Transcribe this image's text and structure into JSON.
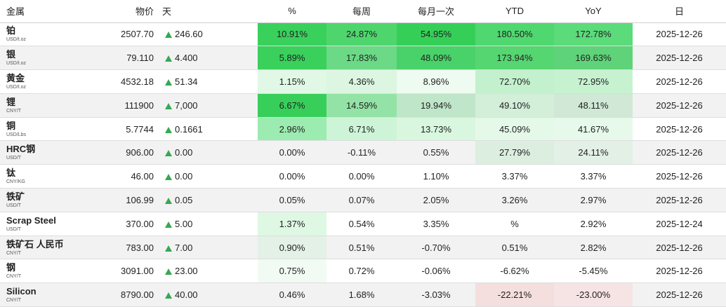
{
  "headers": {
    "name": "金属",
    "price": "物价",
    "day": "天",
    "pct": "%",
    "weekly": "每周",
    "monthly": "每月一次",
    "ytd": "YTD",
    "yoy": "YoY",
    "date": "日"
  },
  "rows": [
    {
      "name": "铂",
      "unit": "USD/t.oz",
      "price": "2507.70",
      "day": "246.60",
      "pct": "10.91%",
      "weekly": "24.87%",
      "monthly": "54.95%",
      "ytd": "180.50%",
      "yoy": "172.78%",
      "date": "2025-12-26",
      "colors": {
        "pct": "#39d05c",
        "weekly": "#4ed66d",
        "monthly": "#35cf58",
        "ytd": "#4fd86f",
        "yoy": "#5bdb79"
      }
    },
    {
      "name": "银",
      "unit": "USD/t.oz",
      "price": "79.110",
      "day": "4.400",
      "pct": "5.89%",
      "weekly": "17.83%",
      "monthly": "48.09%",
      "ytd": "173.94%",
      "yoy": "169.63%",
      "date": "2025-12-26",
      "colors": {
        "pct": "#39d05c",
        "weekly": "#6bd985",
        "monthly": "#49d269",
        "ytd": "#55d671",
        "yoy": "#5fd379"
      }
    },
    {
      "name": "黄金",
      "unit": "USD/t.oz",
      "price": "4532.18",
      "day": "51.34",
      "pct": "1.15%",
      "weekly": "4.36%",
      "monthly": "8.96%",
      "ytd": "72.70%",
      "yoy": "72.95%",
      "date": "2025-12-26",
      "colors": {
        "pct": "#e0f8e5",
        "weekly": "#dcf6e1",
        "monthly": "#eefbf0",
        "ytd": "#c3f1cd",
        "yoy": "#c6f2d0"
      }
    },
    {
      "name": "锂",
      "unit": "CNY/T",
      "price": "111900",
      "day": "7,000",
      "pct": "6.67%",
      "weekly": "14.59%",
      "monthly": "19.94%",
      "ytd": "49.10%",
      "yoy": "48.11%",
      "date": "2025-12-26",
      "colors": {
        "pct": "#37cf5a",
        "weekly": "#93e3a6",
        "monthly": "#c0e6c9",
        "ytd": "#d3eed9",
        "yoy": "#d0e8d5"
      }
    },
    {
      "name": "铜",
      "unit": "USD/Lbs",
      "price": "5.7744",
      "day": "0.1661",
      "pct": "2.96%",
      "weekly": "6.71%",
      "monthly": "13.73%",
      "ytd": "45.09%",
      "yoy": "41.67%",
      "date": "2025-12-26",
      "colors": {
        "pct": "#9cebb0",
        "weekly": "#cdf4d6",
        "monthly": "#d9f7df",
        "ytd": "#e4f9e8",
        "yoy": "#e6f9ea"
      }
    },
    {
      "name": "HRC钢",
      "unit": "USD/T",
      "price": "906.00",
      "day": "0.00",
      "pct": "0.00%",
      "weekly": "-0.11%",
      "monthly": "0.55%",
      "ytd": "27.79%",
      "yoy": "24.11%",
      "date": "2025-12-26",
      "colors": {
        "pct": "",
        "weekly": "",
        "monthly": "",
        "ytd": "#dceee0",
        "yoy": "#e2f0e5"
      }
    },
    {
      "name": "钛",
      "unit": "CNY/KG",
      "price": "46.00",
      "day": "0.00",
      "pct": "0.00%",
      "weekly": "0.00%",
      "monthly": "1.10%",
      "ytd": "3.37%",
      "yoy": "3.37%",
      "date": "2025-12-26",
      "colors": {
        "pct": "",
        "weekly": "",
        "monthly": "",
        "ytd": "",
        "yoy": ""
      }
    },
    {
      "name": "铁矿",
      "unit": "USD/T",
      "price": "106.99",
      "day": "0.05",
      "pct": "0.05%",
      "weekly": "0.07%",
      "monthly": "2.05%",
      "ytd": "3.26%",
      "yoy": "2.97%",
      "date": "2025-12-26",
      "colors": {
        "pct": "",
        "weekly": "",
        "monthly": "",
        "ytd": "",
        "yoy": ""
      }
    },
    {
      "name": "Scrap Steel",
      "unit": "USD/T",
      "price": "370.00",
      "day": "5.00",
      "pct": "1.37%",
      "weekly": "0.54%",
      "monthly": "3.35%",
      "ytd": "%",
      "yoy": "2.92%",
      "date": "2025-12-24",
      "colors": {
        "pct": "#def8e4",
        "weekly": "",
        "monthly": "",
        "ytd": "",
        "yoy": ""
      }
    },
    {
      "name": "铁矿石 人民币",
      "unit": "CNY/T",
      "price": "783.00",
      "day": "7.00",
      "pct": "0.90%",
      "weekly": "0.51%",
      "monthly": "-0.70%",
      "ytd": "0.51%",
      "yoy": "2.82%",
      "date": "2025-12-26",
      "colors": {
        "pct": "#e3f1e6",
        "weekly": "",
        "monthly": "",
        "ytd": "",
        "yoy": ""
      }
    },
    {
      "name": "钢",
      "unit": "CNY/T",
      "price": "3091.00",
      "day": "23.00",
      "pct": "0.75%",
      "weekly": "0.72%",
      "monthly": "-0.06%",
      "ytd": "-6.62%",
      "yoy": "-5.45%",
      "date": "2025-12-26",
      "colors": {
        "pct": "#f1fbf3",
        "weekly": "",
        "monthly": "",
        "ytd": "",
        "yoy": ""
      }
    },
    {
      "name": "Silicon",
      "unit": "CNY/T",
      "price": "8790.00",
      "day": "40.00",
      "pct": "0.46%",
      "weekly": "1.68%",
      "monthly": "-3.03%",
      "ytd": "-22.21%",
      "yoy": "-23.00%",
      "date": "2025-12-26",
      "colors": {
        "pct": "",
        "weekly": "",
        "monthly": "",
        "ytd": "#f4dede",
        "yoy": "#f6e4e4"
      }
    }
  ],
  "accent_up": "#35a853"
}
